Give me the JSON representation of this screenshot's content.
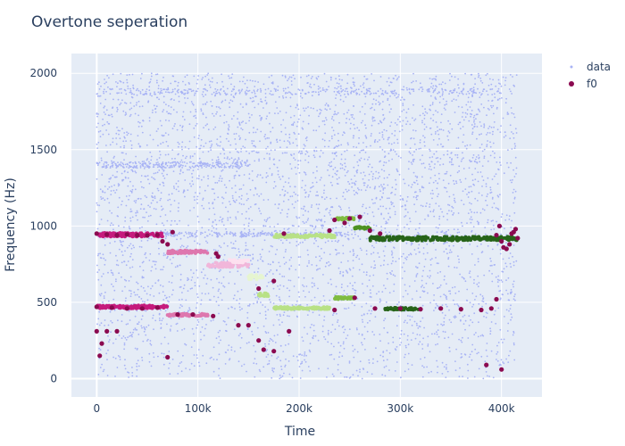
{
  "chart_data": {
    "type": "scatter",
    "title": "Overtone seperation",
    "xlabel": "Time",
    "ylabel": "Frequency (Hz)",
    "xlim": [
      -25000,
      440000
    ],
    "ylim": [
      -120,
      2130
    ],
    "xticks": [
      0,
      100000,
      200000,
      300000,
      400000
    ],
    "xtick_labels": [
      "0",
      "100k",
      "200k",
      "300k",
      "400k"
    ],
    "yticks": [
      0,
      500,
      1000,
      1500,
      2000
    ],
    "ytick_labels": [
      "0",
      "500",
      "1000",
      "1500",
      "2000"
    ],
    "grid": true,
    "legend_position": "top-right",
    "legend": [
      "data",
      "f0"
    ],
    "background_color": "#e5ecf6",
    "data_color": "#a8b3f5",
    "series": [
      {
        "name": "data",
        "color": "#a8b3f5",
        "dense_bands": [
          {
            "x": [
              0,
              400000
            ],
            "y": [
              1860,
              1900
            ]
          },
          {
            "x": [
              0,
              150000
            ],
            "y": [
              1380,
              1420
            ]
          },
          {
            "x": [
              0,
              250000
            ],
            "y": [
              930,
              960
            ]
          },
          {
            "x": [
              0,
              60000
            ],
            "y": [
              460,
              480
            ]
          }
        ],
        "noise": {
          "x": [
            0,
            415000
          ],
          "y": [
            0,
            2000
          ]
        }
      },
      {
        "name": "f0",
        "color": "#8b0a50",
        "points": [
          [
            0,
            950
          ],
          [
            10000,
            945
          ],
          [
            20000,
            940
          ],
          [
            30000,
            945
          ],
          [
            40000,
            940
          ],
          [
            50000,
            938
          ],
          [
            60000,
            942
          ],
          [
            65000,
            900
          ],
          [
            70000,
            880
          ],
          [
            75000,
            960
          ],
          [
            0,
            470
          ],
          [
            15000,
            465
          ],
          [
            30000,
            460
          ],
          [
            45000,
            460
          ],
          [
            60000,
            465
          ],
          [
            0,
            310
          ],
          [
            3000,
            150
          ],
          [
            5000,
            230
          ],
          [
            10000,
            310
          ],
          [
            20000,
            310
          ],
          [
            70000,
            140
          ],
          [
            80000,
            420
          ],
          [
            95000,
            420
          ],
          [
            115000,
            410
          ],
          [
            118000,
            820
          ],
          [
            120000,
            800
          ],
          [
            140000,
            350
          ],
          [
            150000,
            350
          ],
          [
            160000,
            250
          ],
          [
            165000,
            190
          ],
          [
            175000,
            180
          ],
          [
            160000,
            590
          ],
          [
            175000,
            640
          ],
          [
            185000,
            950
          ],
          [
            190000,
            310
          ],
          [
            230000,
            970
          ],
          [
            235000,
            1040
          ],
          [
            245000,
            1020
          ],
          [
            250000,
            1050
          ],
          [
            260000,
            1060
          ],
          [
            270000,
            970
          ],
          [
            280000,
            950
          ],
          [
            235000,
            450
          ],
          [
            255000,
            530
          ],
          [
            275000,
            460
          ],
          [
            300000,
            460
          ],
          [
            320000,
            455
          ],
          [
            340000,
            460
          ],
          [
            360000,
            455
          ],
          [
            380000,
            450
          ],
          [
            390000,
            460
          ],
          [
            385000,
            90
          ],
          [
            400000,
            60
          ],
          [
            395000,
            940
          ],
          [
            398000,
            1000
          ],
          [
            400000,
            900
          ],
          [
            402000,
            860
          ],
          [
            405000,
            850
          ],
          [
            408000,
            880
          ],
          [
            410000,
            950
          ],
          [
            412000,
            960
          ],
          [
            414000,
            980
          ],
          [
            416000,
            920
          ],
          [
            395000,
            520
          ]
        ]
      }
    ],
    "colored_segments": [
      {
        "color": "#c51b7d",
        "x": [
          0,
          65000
        ],
        "y": [
          930,
          955
        ]
      },
      {
        "color": "#de77ae",
        "x": [
          70000,
          110000
        ],
        "y": [
          820,
          840
        ]
      },
      {
        "color": "#f1b6da",
        "x": [
          110000,
          150000
        ],
        "y": [
          730,
          760
        ]
      },
      {
        "color": "#fde0ef",
        "x": [
          130000,
          150000
        ],
        "y": [
          760,
          780
        ]
      },
      {
        "color": "#e6f5d0",
        "x": [
          150000,
          165000
        ],
        "y": [
          650,
          680
        ]
      },
      {
        "color": "#b8e186",
        "x": [
          160000,
          170000
        ],
        "y": [
          540,
          560
        ]
      },
      {
        "color": "#b8e186",
        "x": [
          175000,
          235000
        ],
        "y": [
          925,
          945
        ]
      },
      {
        "color": "#b8e186",
        "x": [
          175000,
          230000
        ],
        "y": [
          455,
          470
        ]
      },
      {
        "color": "#7fbc41",
        "x": [
          235000,
          255000
        ],
        "y": [
          1040,
          1055
        ]
      },
      {
        "color": "#7fbc41",
        "x": [
          235000,
          255000
        ],
        "y": [
          520,
          535
        ]
      },
      {
        "color": "#4d9221",
        "x": [
          255000,
          270000
        ],
        "y": [
          980,
          995
        ]
      },
      {
        "color": "#276419",
        "x": [
          270000,
          415000
        ],
        "y": [
          905,
          930
        ]
      },
      {
        "color": "#276419",
        "x": [
          285000,
          320000
        ],
        "y": [
          450,
          465
        ]
      },
      {
        "color": "#c51b7d",
        "x": [
          0,
          70000
        ],
        "y": [
          460,
          480
        ]
      },
      {
        "color": "#de77ae",
        "x": [
          70000,
          110000
        ],
        "y": [
          410,
          425
        ]
      }
    ]
  }
}
